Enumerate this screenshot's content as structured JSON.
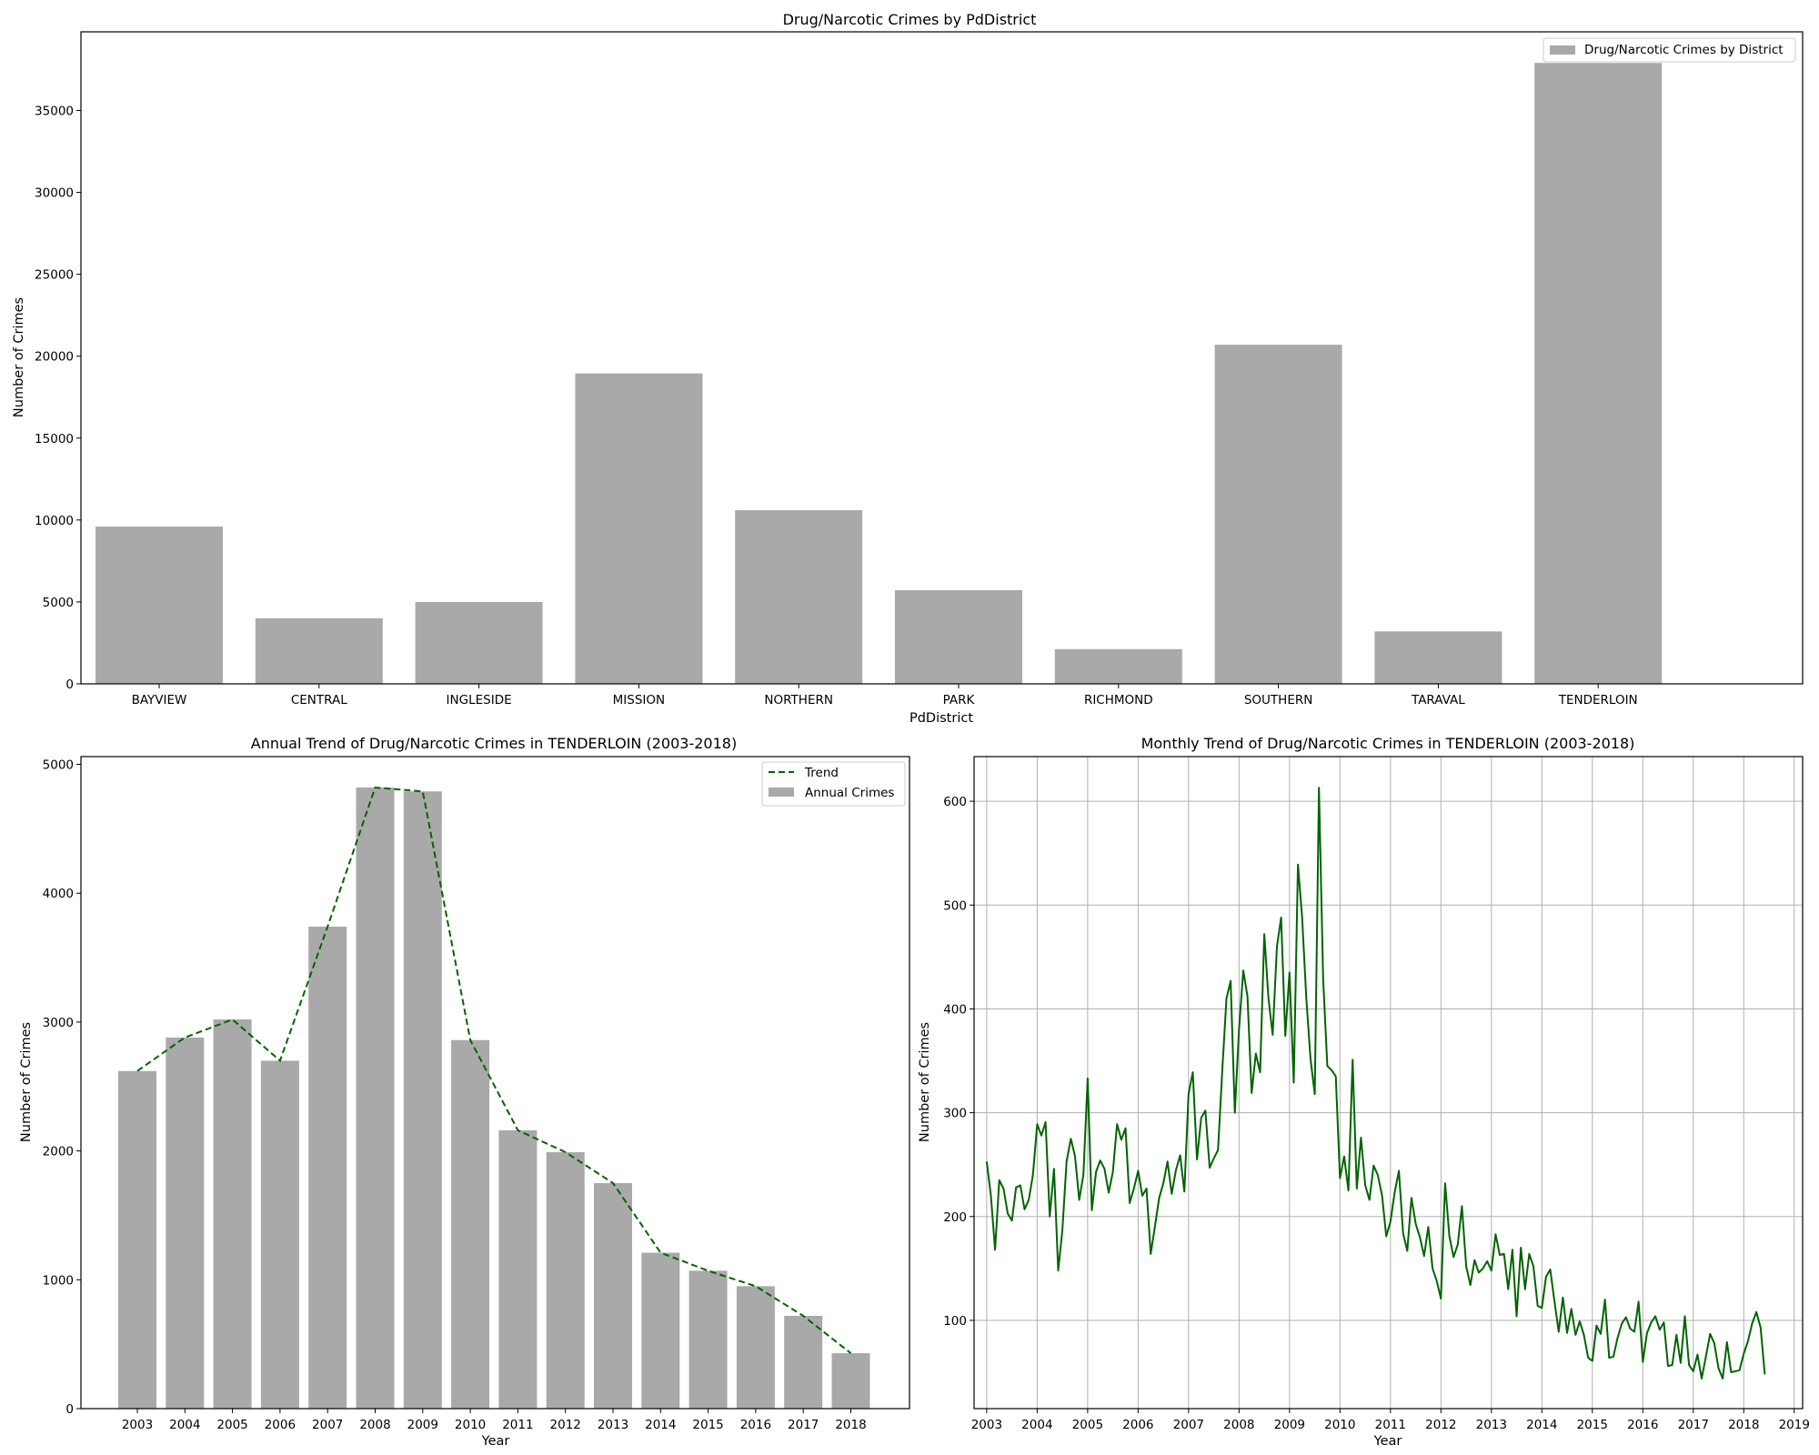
{
  "colors": {
    "bar": "#a9a9a9",
    "line": "#006400",
    "grid": "#b0b0b0"
  },
  "chart_data": [
    {
      "type": "bar",
      "title": "Drug/Narcotic Crimes by PdDistrict",
      "xlabel": "PdDistrict",
      "ylabel": "Number of Crimes",
      "categories": [
        "BAYVIEW",
        "CENTRAL",
        "INGLESIDE",
        "MISSION",
        "NORTHERN",
        "PARK",
        "RICHMOND",
        "SOUTHERN",
        "TARAVAL",
        "TENDERLOIN"
      ],
      "series": [
        {
          "name": "Drug/Narcotic Crimes by District",
          "values": [
            9600,
            4000,
            5000,
            18950,
            10600,
            5720,
            2120,
            20700,
            3200,
            37900
          ]
        }
      ],
      "yticks": [
        "0",
        "5000",
        "10000",
        "15000",
        "20000",
        "25000",
        "30000",
        "35000"
      ],
      "ylim": [
        0,
        39800
      ],
      "grid": false,
      "legend": "top-right"
    },
    {
      "type": "bar",
      "title": "Annual Trend of Drug/Narcotic Crimes in TENDERLOIN (2003-2018)",
      "xlabel": "Year",
      "ylabel": "Number of Crimes",
      "categories": [
        "2003",
        "2004",
        "2005",
        "2006",
        "2007",
        "2008",
        "2009",
        "2010",
        "2011",
        "2012",
        "2013",
        "2014",
        "2015",
        "2016",
        "2017",
        "2018"
      ],
      "series": [
        {
          "name": "Annual Crimes",
          "values": [
            2620,
            2880,
            3020,
            2700,
            3740,
            4820,
            4790,
            2860,
            2160,
            1990,
            1750,
            1210,
            1070,
            950,
            720,
            430
          ]
        },
        {
          "name": "Trend",
          "style": "dashed-line",
          "values": [
            2620,
            2880,
            3020,
            2700,
            3740,
            4820,
            4790,
            2860,
            2160,
            1990,
            1750,
            1210,
            1070,
            950,
            720,
            430
          ]
        }
      ],
      "yticks": [
        "0",
        "1000",
        "2000",
        "3000",
        "4000",
        "5000"
      ],
      "ylim": [
        0,
        5060
      ],
      "grid": false,
      "legend": "top-right"
    },
    {
      "type": "line",
      "title": "Monthly Trend of Drug/Narcotic Crimes in TENDERLOIN (2003-2018)",
      "xlabel": "Year",
      "ylabel": "Number of Crimes",
      "x_start": "2003-01",
      "x_step": "1 month",
      "series": [
        {
          "values": [
            253,
            220,
            168,
            235,
            227,
            203,
            196,
            228,
            230,
            207,
            216,
            240,
            289,
            278,
            291,
            200,
            246,
            148,
            187,
            253,
            275,
            258,
            216,
            240,
            333,
            206,
            243,
            254,
            246,
            223,
            243,
            289,
            274,
            285,
            213,
            227,
            244,
            220,
            227,
            164,
            190,
            218,
            232,
            253,
            222,
            245,
            259,
            224,
            318,
            339,
            255,
            295,
            302,
            247,
            256,
            264,
            339,
            410,
            427,
            300,
            380,
            437,
            412,
            319,
            357,
            339,
            472,
            410,
            375,
            460,
            488,
            374,
            435,
            329,
            539,
            488,
            410,
            352,
            318,
            613,
            429,
            345,
            341,
            335,
            237,
            258,
            225,
            351,
            227,
            276,
            230,
            216,
            249,
            240,
            220,
            181,
            195,
            223,
            244,
            184,
            167,
            218,
            193,
            180,
            162,
            190,
            150,
            138,
            121,
            232,
            181,
            161,
            173,
            210,
            152,
            134,
            158,
            146,
            150,
            157,
            148,
            183,
            163,
            164,
            130,
            168,
            104,
            170,
            130,
            164,
            152,
            114,
            112,
            142,
            149,
            118,
            89,
            122,
            88,
            111,
            86,
            99,
            86,
            64,
            61,
            95,
            87,
            120,
            64,
            65,
            83,
            97,
            103,
            92,
            89,
            118,
            60,
            88,
            98,
            104,
            91,
            98,
            56,
            57,
            86,
            59,
            104,
            57,
            51,
            67,
            44,
            65,
            87,
            78,
            54,
            44,
            79,
            50,
            51,
            52,
            68,
            80,
            97,
            108,
            93,
            48
          ]
        }
      ],
      "xticks": [
        "2003",
        "2004",
        "2005",
        "2006",
        "2007",
        "2008",
        "2009",
        "2010",
        "2011",
        "2012",
        "2013",
        "2014",
        "2015",
        "2016",
        "2017",
        "2018",
        "2019"
      ],
      "yticks": [
        "100",
        "200",
        "300",
        "400",
        "500",
        "600"
      ],
      "xlim": [
        "2002-10",
        "2019-03"
      ],
      "ylim": [
        15,
        643
      ],
      "grid": true
    }
  ]
}
